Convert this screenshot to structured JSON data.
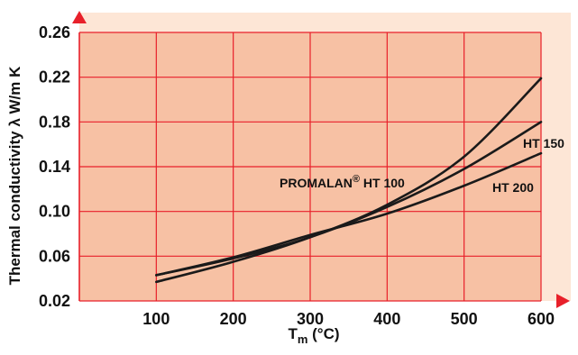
{
  "colors": {
    "page_background": "#fde6d6",
    "plot_background": "#f7c1a4",
    "grid": "#e8202a",
    "arrow": "#e8202a",
    "curve": "#1a1a1a",
    "text": "#111111"
  },
  "chart_data": {
    "type": "line",
    "title": "",
    "xlabel": {
      "main": "T",
      "sub": "m",
      "rest": " (°C)"
    },
    "ylabel": "Thermal conductivity λ W/m K",
    "xlim": [
      0,
      600
    ],
    "ylim": [
      0.02,
      0.26
    ],
    "x_ticks": [
      "100",
      "200",
      "300",
      "400",
      "500",
      "600"
    ],
    "y_ticks": [
      "0.02",
      "0.06",
      "0.10",
      "0.14",
      "0.18",
      "0.22",
      "0.26"
    ],
    "grid": true,
    "series": [
      {
        "name": "PROMALAN® HT 100",
        "label_parts": {
          "main": "PROMALAN",
          "sup": "®",
          "rest": " HT 100"
        },
        "x": [
          100,
          200,
          300,
          400,
          500,
          600
        ],
        "y": [
          0.037,
          0.055,
          0.077,
          0.106,
          0.149,
          0.219
        ]
      },
      {
        "name": "HT 150",
        "label_parts": {
          "main": "HT 150",
          "sup": "",
          "rest": ""
        },
        "x": [
          100,
          200,
          300,
          400,
          500,
          600
        ],
        "y": [
          0.043,
          0.058,
          0.077,
          0.104,
          0.138,
          0.18
        ]
      },
      {
        "name": "HT 200",
        "label_parts": {
          "main": "HT 200",
          "sup": "",
          "rest": ""
        },
        "x": [
          100,
          200,
          300,
          400,
          500,
          600
        ],
        "y": [
          0.043,
          0.059,
          0.079,
          0.098,
          0.123,
          0.152
        ]
      }
    ]
  }
}
